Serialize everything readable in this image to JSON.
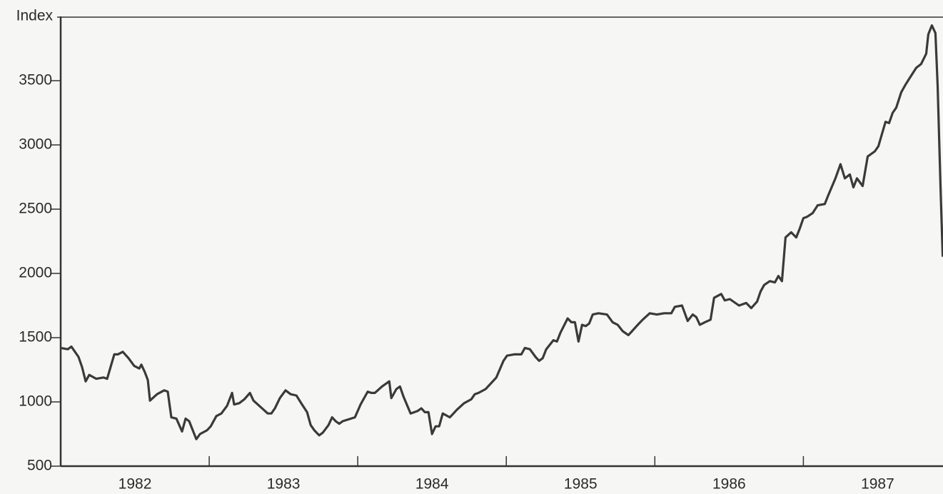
{
  "chart_data": {
    "type": "line",
    "y_label": "Index",
    "categories": [
      "1982",
      "1983",
      "1984",
      "1985",
      "1986",
      "1987"
    ],
    "x": [
      1982.0,
      1982.048,
      1982.072,
      1982.12,
      1982.144,
      1982.168,
      1982.192,
      1982.24,
      1982.288,
      1982.313,
      1982.361,
      1982.385,
      1982.418,
      1982.457,
      1982.495,
      1982.529,
      1982.543,
      1982.567,
      1982.587,
      1982.601,
      1982.649,
      1982.697,
      1982.721,
      1982.745,
      1982.779,
      1982.817,
      1982.841,
      1982.865,
      1982.913,
      1982.938,
      1982.986,
      1983.01,
      1983.048,
      1983.082,
      1983.12,
      1983.154,
      1983.168,
      1983.202,
      1983.236,
      1983.274,
      1983.298,
      1983.346,
      1983.394,
      1983.418,
      1983.442,
      1983.476,
      1983.514,
      1983.548,
      1983.587,
      1983.625,
      1983.659,
      1983.683,
      1983.707,
      1983.74,
      1983.764,
      1983.803,
      1983.827,
      1983.851,
      1983.875,
      1983.899,
      1983.981,
      1984.019,
      1984.067,
      1984.091,
      1984.115,
      1984.163,
      1984.212,
      1984.226,
      1984.26,
      1984.284,
      1984.308,
      1984.356,
      1984.404,
      1984.428,
      1984.452,
      1984.476,
      1984.5,
      1984.524,
      1984.548,
      1984.572,
      1984.62,
      1984.668,
      1984.716,
      1984.764,
      1984.788,
      1984.813,
      1984.861,
      1984.933,
      1984.981,
      1985.005,
      1985.053,
      1985.101,
      1985.125,
      1985.159,
      1985.197,
      1985.221,
      1985.245,
      1985.269,
      1985.317,
      1985.341,
      1985.365,
      1985.413,
      1985.438,
      1985.462,
      1985.486,
      1985.51,
      1985.534,
      1985.558,
      1985.582,
      1985.62,
      1985.678,
      1985.716,
      1985.75,
      1985.784,
      1985.822,
      1985.846,
      1985.885,
      1985.918,
      1985.966,
      1986.014,
      1986.063,
      1986.111,
      1986.135,
      1986.183,
      1986.221,
      1986.255,
      1986.279,
      1986.303,
      1986.337,
      1986.375,
      1986.399,
      1986.447,
      1986.471,
      1986.505,
      1986.567,
      1986.615,
      1986.649,
      1986.688,
      1986.712,
      1986.736,
      1986.774,
      1986.808,
      1986.832,
      1986.856,
      1986.88,
      1986.918,
      1986.952,
      1986.976,
      1987.0,
      1987.024,
      1987.063,
      1987.096,
      1987.144,
      1987.168,
      1987.216,
      1987.25,
      1987.279,
      1987.313,
      1987.337,
      1987.361,
      1987.399,
      1987.433,
      1987.481,
      1987.505,
      1987.553,
      1987.577,
      1987.601,
      1987.625,
      1987.659,
      1987.688,
      1987.721,
      1987.76,
      1987.793,
      1987.827,
      1987.841,
      1987.865,
      1987.889,
      1987.904,
      1987.923,
      1987.938
    ],
    "values": [
      1420,
      1410,
      1430,
      1350,
      1270,
      1160,
      1210,
      1180,
      1190,
      1180,
      1370,
      1370,
      1390,
      1340,
      1280,
      1260,
      1290,
      1230,
      1170,
      1010,
      1060,
      1090,
      1080,
      880,
      870,
      770,
      870,
      850,
      710,
      750,
      780,
      810,
      890,
      910,
      970,
      1070,
      980,
      990,
      1020,
      1070,
      1010,
      960,
      910,
      910,
      950,
      1030,
      1090,
      1060,
      1050,
      980,
      920,
      820,
      780,
      740,
      760,
      820,
      880,
      850,
      830,
      850,
      880,
      980,
      1080,
      1070,
      1070,
      1120,
      1160,
      1030,
      1100,
      1120,
      1040,
      910,
      930,
      950,
      920,
      920,
      750,
      810,
      810,
      910,
      880,
      940,
      990,
      1020,
      1060,
      1070,
      1100,
      1190,
      1320,
      1360,
      1370,
      1370,
      1420,
      1410,
      1350,
      1320,
      1340,
      1410,
      1480,
      1470,
      1540,
      1650,
      1620,
      1620,
      1470,
      1600,
      1590,
      1610,
      1680,
      1690,
      1680,
      1620,
      1600,
      1550,
      1520,
      1550,
      1600,
      1640,
      1690,
      1680,
      1690,
      1690,
      1740,
      1750,
      1630,
      1680,
      1660,
      1600,
      1620,
      1640,
      1810,
      1840,
      1790,
      1800,
      1750,
      1770,
      1730,
      1780,
      1860,
      1910,
      1940,
      1930,
      1980,
      1940,
      2280,
      2320,
      2280,
      2350,
      2430,
      2440,
      2470,
      2530,
      2540,
      2610,
      2740,
      2850,
      2740,
      2770,
      2670,
      2740,
      2680,
      2910,
      2950,
      2990,
      3180,
      3170,
      3250,
      3290,
      3410,
      3470,
      3530,
      3600,
      3630,
      3710,
      3860,
      3930,
      3870,
      3460,
      2680,
      2130
    ],
    "color": "#3a3a3a",
    "xlim": [
      1982,
      1987.94
    ],
    "xticks": [
      1983,
      1984,
      1985,
      1986,
      1987
    ],
    "ylim": [
      500,
      4000
    ],
    "yticks": [
      500,
      1000,
      1500,
      2000,
      2500,
      3000,
      3500
    ]
  }
}
